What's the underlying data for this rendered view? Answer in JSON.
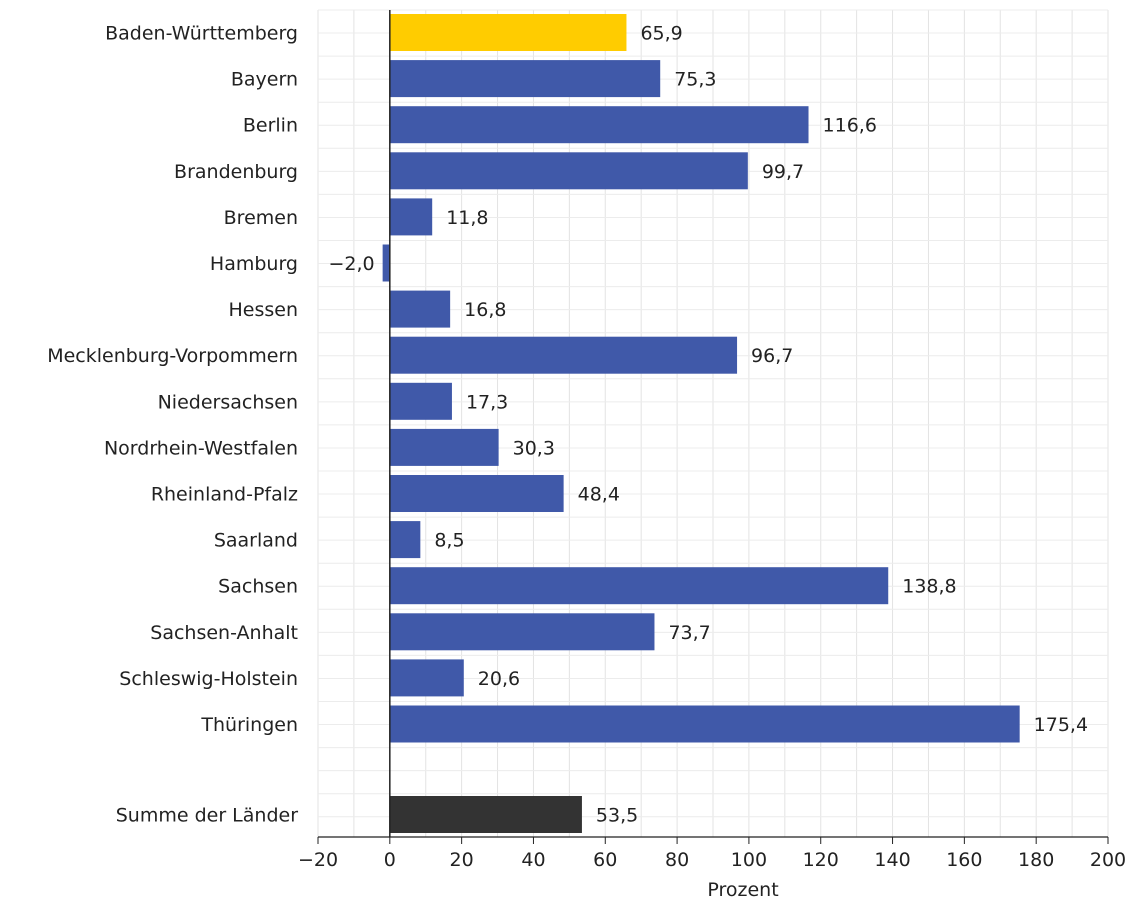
{
  "chart_data": {
    "type": "bar",
    "orientation": "horizontal",
    "categories": [
      "Baden-Württemberg",
      "Bayern",
      "Berlin",
      "Brandenburg",
      "Bremen",
      "Hamburg",
      "Hessen",
      "Mecklenburg-Vorpommern",
      "Niedersachsen",
      "Nordrhein-Westfalen",
      "Rheinland-Pfalz",
      "Saarland",
      "Sachsen",
      "Sachsen-Anhalt",
      "Schleswig-Holstein",
      "Thüringen",
      "Summe der Länder"
    ],
    "values": [
      65.9,
      75.3,
      116.6,
      99.7,
      11.8,
      -2.0,
      16.8,
      96.7,
      17.3,
      30.3,
      48.4,
      8.5,
      138.8,
      73.7,
      20.6,
      175.4,
      53.5
    ],
    "value_labels": [
      "65,9",
      "75,3",
      "116,6",
      "99,7",
      "11,8",
      "−2,0",
      "16,8",
      "96,7",
      "17,3",
      "30,3",
      "48,4",
      "8,5",
      "138,8",
      "73,7",
      "20,6",
      "175,4",
      "53,5"
    ],
    "bar_colors": [
      "#ffcc00",
      "#4059a9",
      "#4059a9",
      "#4059a9",
      "#4059a9",
      "#4059a9",
      "#4059a9",
      "#4059a9",
      "#4059a9",
      "#4059a9",
      "#4059a9",
      "#4059a9",
      "#4059a9",
      "#4059a9",
      "#4059a9",
      "#4059a9",
      "#333333"
    ],
    "xlim": [
      -20,
      200
    ],
    "xticks": [
      -20,
      0,
      20,
      40,
      60,
      80,
      100,
      120,
      140,
      160,
      180,
      200
    ],
    "xtick_labels": [
      "−20",
      "0",
      "20",
      "40",
      "60",
      "80",
      "100",
      "120",
      "140",
      "160",
      "180",
      "200"
    ],
    "xlabel": "Prozent",
    "ylabel": "",
    "title": "",
    "grid": true,
    "legend": "none"
  }
}
